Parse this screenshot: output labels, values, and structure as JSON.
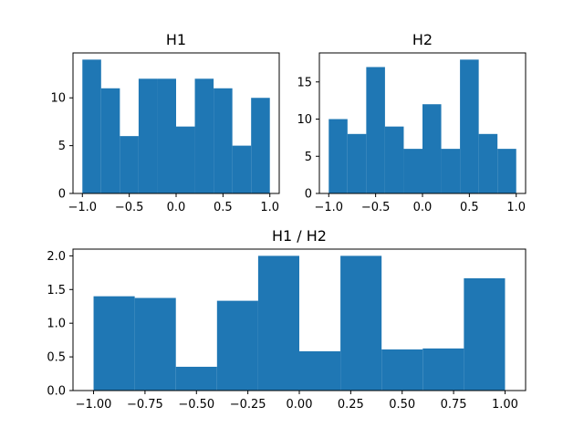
{
  "chart_data": [
    {
      "type": "bar",
      "title": "H1",
      "xlabel": "",
      "ylabel": "",
      "bin_edges": [
        -1.0,
        -0.8,
        -0.6,
        -0.4,
        -0.2,
        0.0,
        0.2,
        0.4,
        0.6,
        0.8,
        1.0
      ],
      "values": [
        14,
        11,
        6,
        12,
        12,
        7,
        12,
        11,
        5,
        10
      ],
      "xlim": [
        -1.1,
        1.1
      ],
      "ylim": [
        0,
        14.7
      ],
      "xticks": [
        -1.0,
        -0.5,
        0.0,
        0.5,
        1.0
      ],
      "xtick_labels": [
        "−1.0",
        "−0.5",
        "0.0",
        "0.5",
        "1.0"
      ],
      "yticks": [
        0,
        5,
        10
      ],
      "ytick_labels": [
        "0",
        "5",
        "10"
      ],
      "color": "#1f77b4",
      "grid": false
    },
    {
      "type": "bar",
      "title": "H2",
      "xlabel": "",
      "ylabel": "",
      "bin_edges": [
        -1.0,
        -0.8,
        -0.6,
        -0.4,
        -0.2,
        0.0,
        0.2,
        0.4,
        0.6,
        0.8,
        1.0
      ],
      "values": [
        10,
        8,
        17,
        9,
        6,
        12,
        6,
        18,
        8,
        6
      ],
      "xlim": [
        -1.1,
        1.1
      ],
      "ylim": [
        0,
        18.9
      ],
      "xticks": [
        -1.0,
        -0.5,
        0.0,
        0.5,
        1.0
      ],
      "xtick_labels": [
        "−1.0",
        "−0.5",
        "0.0",
        "0.5",
        "1.0"
      ],
      "yticks": [
        0,
        5,
        10,
        15
      ],
      "ytick_labels": [
        "0",
        "5",
        "10",
        "15"
      ],
      "color": "#1f77b4",
      "grid": false
    },
    {
      "type": "bar",
      "title": "H1 / H2",
      "xlabel": "",
      "ylabel": "",
      "bin_edges": [
        -1.0,
        -0.8,
        -0.6,
        -0.4,
        -0.2,
        0.0,
        0.2,
        0.4,
        0.6,
        0.8,
        1.0
      ],
      "values": [
        1.4,
        1.375,
        0.353,
        1.333,
        2.0,
        0.583,
        2.0,
        0.611,
        0.625,
        1.667
      ],
      "xlim": [
        -1.1,
        1.1
      ],
      "ylim": [
        0,
        2.1
      ],
      "xticks": [
        -1.0,
        -0.75,
        -0.5,
        -0.25,
        0.0,
        0.25,
        0.5,
        0.75,
        1.0
      ],
      "xtick_labels": [
        "−1.00",
        "−0.75",
        "−0.50",
        "−0.25",
        "0.00",
        "0.25",
        "0.50",
        "0.75",
        "1.00"
      ],
      "yticks": [
        0.0,
        0.5,
        1.0,
        1.5,
        2.0
      ],
      "ytick_labels": [
        "0.0",
        "0.5",
        "1.0",
        "1.5",
        "2.0"
      ],
      "color": "#1f77b4",
      "grid": false
    }
  ]
}
